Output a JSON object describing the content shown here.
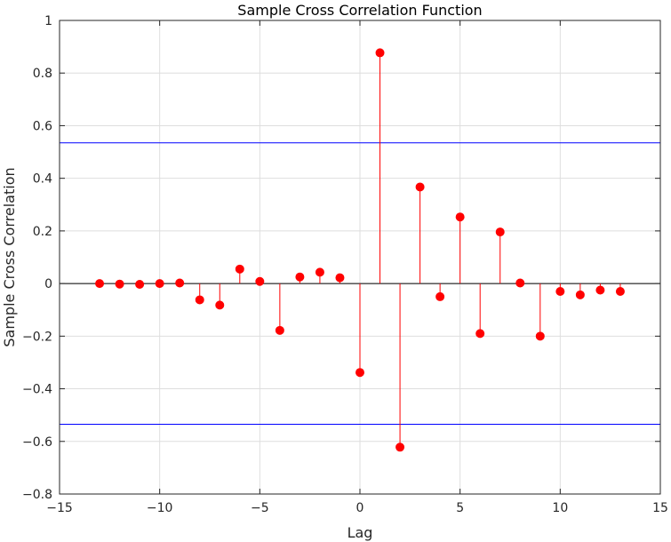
{
  "chart_data": {
    "type": "stem",
    "title": "Sample Cross Correlation Function",
    "xlabel": "Lag",
    "ylabel": "Sample Cross Correlation",
    "xlim": [
      -15,
      15
    ],
    "ylim": [
      -0.8,
      1
    ],
    "xticks": [
      -15,
      -10,
      -5,
      0,
      5,
      10,
      15
    ],
    "xtick_labels": [
      "−15",
      "−10",
      "−5",
      "0",
      "5",
      "10",
      "15"
    ],
    "yticks": [
      -0.8,
      -0.6,
      -0.4,
      -0.2,
      0,
      0.2,
      0.4,
      0.6,
      0.8,
      1
    ],
    "ytick_labels": [
      "−0.8",
      "−0.6",
      "−0.4",
      "−0.2",
      "0",
      "0.2",
      "0.4",
      "0.6",
      "0.8",
      "1"
    ],
    "grid": true,
    "series": [
      {
        "x": [
          -13,
          -12,
          -11,
          -10,
          -9,
          -8,
          -7,
          -6,
          -5,
          -4,
          -3,
          -2,
          -1,
          0,
          1,
          2,
          3,
          4,
          5,
          6,
          7,
          8,
          9,
          10,
          11,
          12,
          13
        ],
        "y": [
          0.0,
          -0.002,
          -0.003,
          0.0,
          0.002,
          -0.062,
          -0.082,
          0.055,
          0.008,
          -0.178,
          0.025,
          0.043,
          0.022,
          -0.338,
          0.877,
          -0.622,
          0.367,
          -0.05,
          0.253,
          -0.19,
          0.196,
          0.002,
          -0.2,
          -0.03,
          -0.043,
          -0.025,
          -0.03
        ],
        "color": "#ff0000"
      }
    ],
    "bounds": {
      "upper": 0.535,
      "lower": -0.535,
      "color": "#0000ff"
    }
  }
}
